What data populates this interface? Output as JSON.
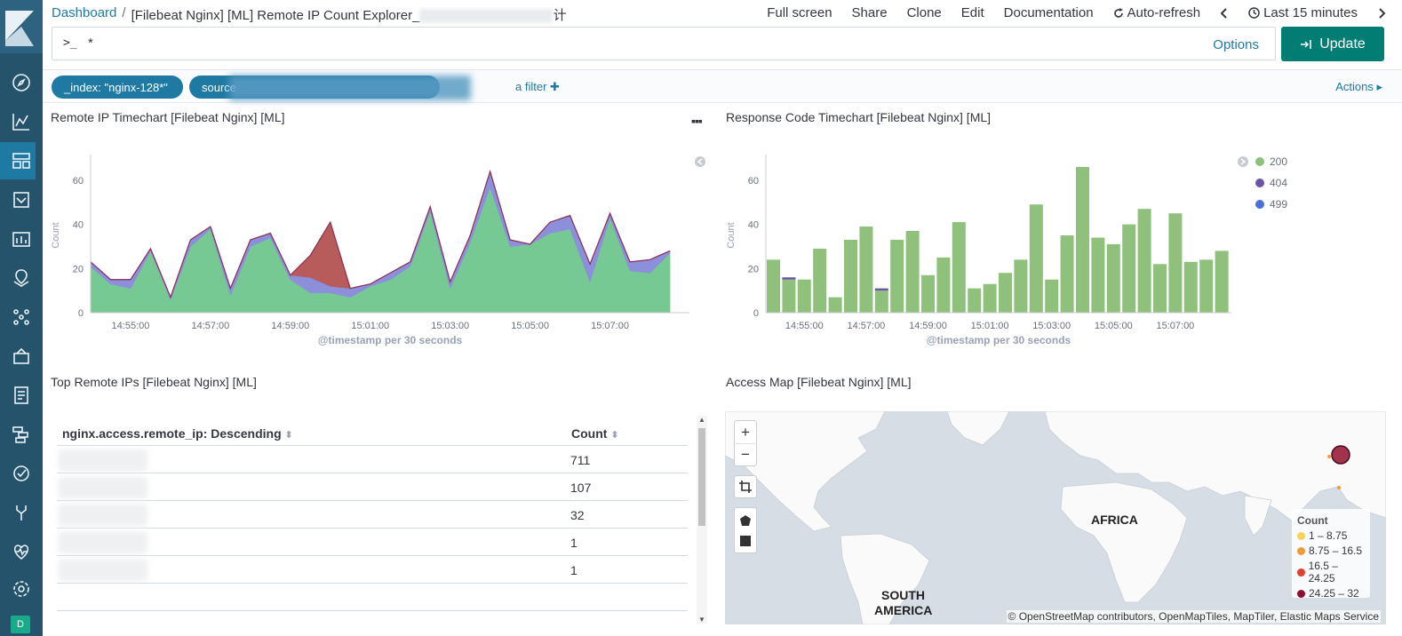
{
  "breadcrumb": {
    "root": "Dashboard",
    "separator": "/",
    "title_start": "[Filebeat Nginx] [ML] Remote IP Count Explorer_",
    "title_end": "计"
  },
  "toplinks": [
    "Full screen",
    "Share",
    "Clone",
    "Edit",
    "Documentation",
    "Auto-refresh",
    "Last 15 minutes"
  ],
  "query": {
    "prompt": ">_",
    "value": "*",
    "options_label": "Options",
    "update_label": "Update"
  },
  "filters": {
    "pill1": "_index: \"nginx-128*\"",
    "pill2_visible": "source",
    "add_filter": "a filter",
    "actions": "Actions"
  },
  "panels": {
    "remote_ip_title": "Remote IP Timechart [Filebeat Nginx] [ML]",
    "response_code_title": "Response Code Timechart [Filebeat Nginx] [ML]",
    "top_ips_title": "Top Remote IPs [Filebeat Nginx] [ML]",
    "access_map_title": "Access Map [Filebeat Nginx] [ML]"
  },
  "chart_data": [
    {
      "type": "area",
      "title": "Remote IP Timechart [Filebeat Nginx] [ML]",
      "xlabel": "@timestamp per 30 seconds",
      "ylabel": "Count",
      "ylim": [
        0,
        70
      ],
      "yticks": [
        0,
        20,
        40,
        60
      ],
      "x": [
        "14:54:00",
        "14:54:30",
        "14:55:00",
        "14:55:30",
        "14:56:00",
        "14:56:30",
        "14:57:00",
        "14:57:30",
        "14:58:00",
        "14:58:30",
        "14:59:00",
        "14:59:30",
        "15:00:00",
        "15:00:30",
        "15:01:00",
        "15:01:30",
        "15:02:00",
        "15:02:30",
        "15:03:00",
        "15:03:30",
        "15:04:00",
        "15:04:30",
        "15:05:00",
        "15:05:30",
        "15:06:00",
        "15:06:30",
        "15:07:00",
        "15:07:30",
        "15:08:00",
        "15:08:30"
      ],
      "xticks": [
        "14:55:00",
        "14:57:00",
        "14:59:00",
        "15:01:00",
        "15:03:00",
        "15:05:00",
        "15:07:00"
      ],
      "series": [
        {
          "color": "#77c994",
          "values": [
            21,
            13,
            11,
            28,
            6,
            30,
            38,
            8,
            30,
            34,
            15,
            9,
            9,
            7,
            12,
            15,
            21,
            46,
            11,
            32,
            57,
            30,
            31,
            36,
            38,
            14,
            43,
            19,
            18,
            27
          ]
        },
        {
          "color": "#8c8fd9",
          "values": [
            2,
            2,
            4,
            1,
            1,
            3,
            1,
            3,
            3,
            2,
            2,
            7,
            3,
            4,
            1,
            3,
            2,
            2,
            3,
            3,
            7,
            3,
            0,
            5,
            6,
            8,
            2,
            4,
            6,
            1
          ]
        },
        {
          "color": "#b85b5b",
          "values": [
            0,
            0,
            0,
            0,
            0,
            0,
            0,
            0,
            0,
            0,
            0,
            10,
            29,
            0,
            0,
            0,
            0,
            0,
            0,
            0,
            0,
            0,
            0,
            0,
            0,
            0,
            0,
            0,
            0,
            0
          ]
        }
      ]
    },
    {
      "type": "bar",
      "title": "Response Code Timechart [Filebeat Nginx] [ML]",
      "xlabel": "@timestamp per 30 seconds",
      "ylabel": "Count",
      "ylim": [
        0,
        70
      ],
      "yticks": [
        0,
        20,
        40,
        60
      ],
      "xticks": [
        "14:55:00",
        "14:57:00",
        "14:59:00",
        "15:01:00",
        "15:03:00",
        "15:05:00",
        "15:07:00"
      ],
      "legend": [
        {
          "name": "200",
          "color": "#8fc17c"
        },
        {
          "name": "404",
          "color": "#6a55a3"
        },
        {
          "name": "499",
          "color": "#4a6fd8"
        }
      ],
      "series": [
        {
          "name": "200",
          "color": "#8fc17c",
          "values": [
            24,
            15,
            15,
            29,
            7,
            33,
            39,
            10,
            33,
            37,
            17,
            25,
            41,
            11,
            13,
            18,
            24,
            49,
            15,
            35,
            66,
            34,
            31,
            40,
            47,
            22,
            45,
            23,
            24,
            28
          ]
        },
        {
          "name": "404",
          "color": "#6a55a3",
          "values": [
            0,
            1,
            0,
            0,
            0,
            0,
            0,
            1,
            0,
            0,
            0,
            0,
            0,
            0,
            0,
            0,
            0,
            0,
            0,
            0,
            0,
            0,
            0,
            0,
            0,
            0,
            0,
            0,
            0,
            0
          ]
        }
      ]
    }
  ],
  "top_ips": {
    "headers": [
      "nginx.access.remote_ip: Descending",
      "Count"
    ],
    "counts": [
      "711",
      "107",
      "32",
      "1",
      "1"
    ]
  },
  "map": {
    "labels": [
      "AFRICA",
      "SOUTH",
      "AMERICA"
    ],
    "legend_title": "Count",
    "legend": [
      {
        "label": "1 – 8.75",
        "color": "#f7d25d"
      },
      {
        "label": "8.75 – 16.5",
        "color": "#f09a3e"
      },
      {
        "label": "16.5 – 24.25",
        "color": "#e2402e"
      },
      {
        "label": "24.25 – 32",
        "color": "#8e0e2e"
      }
    ],
    "attribution": "© OpenStreetMap contributors, OpenMapTiles, MapTiler, Elastic Maps Service",
    "zoom_in": "+",
    "zoom_out": "−"
  },
  "sidebar": {
    "avatar": "D"
  }
}
